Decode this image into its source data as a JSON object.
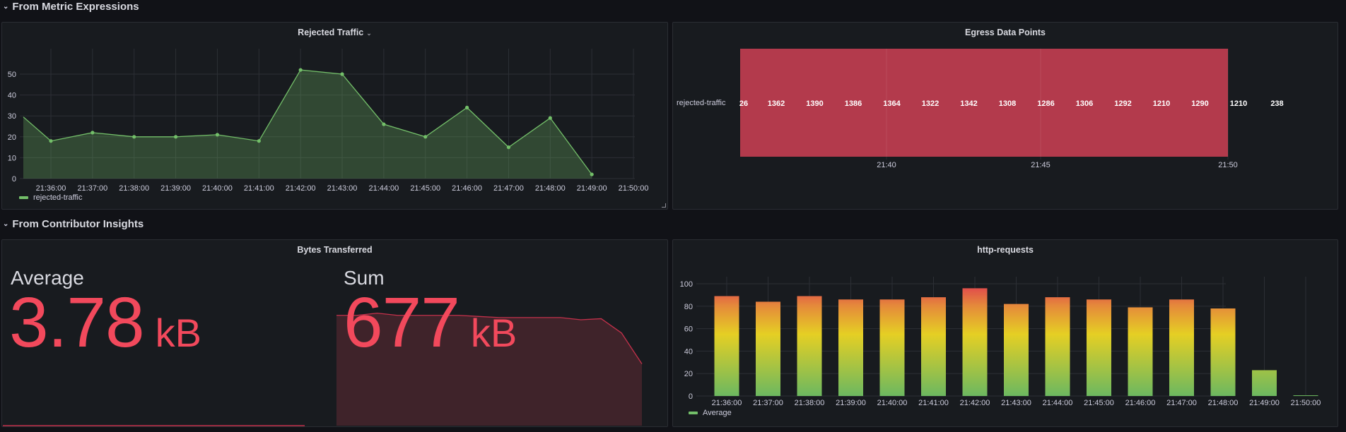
{
  "rows": [
    {
      "title": "From Metric Expressions",
      "collapse_icon": "chevron-down-icon"
    },
    {
      "title": "From Contributor Insights",
      "collapse_icon": "chevron-down-icon"
    }
  ],
  "panels": {
    "rejected_traffic": {
      "title": "Rejected Traffic",
      "title_menu_icon": "chevron-down-icon",
      "legend": "rejected-traffic",
      "line_color": "#73bf69"
    },
    "egress": {
      "title": "Egress Data Points",
      "row_label": "rejected-traffic",
      "cell_color": "#b33a4c"
    },
    "bytes": {
      "title": "Bytes Transferred",
      "average_label": "Average",
      "average_value": "3.78",
      "average_unit": "kB",
      "sum_label": "Sum",
      "sum_value": "677",
      "sum_unit": "kB",
      "value_color": "#f2495c"
    },
    "http": {
      "title": "http-requests",
      "legend": "Average"
    }
  },
  "chart_data": [
    {
      "type": "area",
      "title": "Rejected Traffic",
      "xlabel": "",
      "ylabel": "",
      "x": [
        "21:35:20",
        "21:36:00",
        "21:37:00",
        "21:38:00",
        "21:39:00",
        "21:40:00",
        "21:41:00",
        "21:42:00",
        "21:43:00",
        "21:44:00",
        "21:45:00",
        "21:46:00",
        "21:47:00",
        "21:48:00",
        "21:49:00"
      ],
      "series": [
        {
          "name": "rejected-traffic",
          "values": [
            29.5,
            18,
            22,
            20,
            20,
            21,
            18,
            52,
            50,
            26,
            20,
            34,
            15,
            29,
            2
          ]
        }
      ],
      "x_ticks": [
        "21:36:00",
        "21:37:00",
        "21:38:00",
        "21:39:00",
        "21:40:00",
        "21:41:00",
        "21:42:00",
        "21:43:00",
        "21:44:00",
        "21:45:00",
        "21:46:00",
        "21:47:00",
        "21:48:00",
        "21:49:00",
        "21:50:00"
      ],
      "y_ticks": [
        0,
        10,
        20,
        30,
        40,
        50
      ],
      "ylim": [
        0,
        57
      ],
      "grid": true,
      "legend_position": "bottom-left"
    },
    {
      "type": "heatmap",
      "title": "Egress Data Points",
      "rows": [
        "rejected-traffic"
      ],
      "values": [
        "26",
        "1362",
        "1390",
        "1386",
        "1364",
        "1322",
        "1342",
        "1308",
        "1286",
        "1306",
        "1292",
        "1210",
        "1290",
        "1210",
        "238"
      ],
      "x_ticks": [
        "21:40",
        "21:45",
        "21:50"
      ]
    },
    {
      "type": "bar",
      "title": "http-requests",
      "categories": [
        "21:36:00",
        "21:37:00",
        "21:38:00",
        "21:39:00",
        "21:40:00",
        "21:41:00",
        "21:42:00",
        "21:43:00",
        "21:44:00",
        "21:45:00",
        "21:46:00",
        "21:47:00",
        "21:48:00",
        "21:49:00",
        "21:50:00"
      ],
      "series": [
        {
          "name": "Average",
          "values": [
            89,
            84,
            89,
            86,
            86,
            88,
            96,
            82,
            88,
            86,
            79,
            86,
            78,
            23,
            0
          ]
        }
      ],
      "y_ticks": [
        0,
        20,
        40,
        60,
        80,
        100
      ],
      "ylim": [
        0,
        105
      ],
      "grid": true,
      "color_gradient": [
        "#73bf69",
        "#fade2a",
        "#f2495c"
      ],
      "legend_position": "bottom-left"
    },
    {
      "type": "area",
      "title": "Bytes Transferred - Sum sparkline",
      "values": [
        1.0,
        1.0,
        1.02,
        1.0,
        1.0,
        1.0,
        1.0,
        0.99,
        0.98,
        0.98,
        0.98,
        0.98,
        0.96,
        0.97,
        0.84,
        0.56
      ]
    }
  ]
}
